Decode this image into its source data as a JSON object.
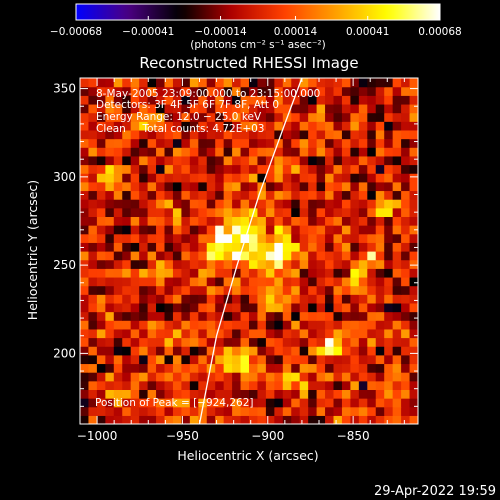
{
  "chart_data": {
    "type": "heatmap",
    "title": "Reconstructed RHESSI Image",
    "xlabel": "Heliocentric X (arcsec)",
    "ylabel": "Heliocentric Y (arcsec)",
    "xlim": [
      -1010,
      -812
    ],
    "ylim": [
      160,
      356
    ],
    "x_ticks": [
      -1000,
      -950,
      -900,
      -850
    ],
    "x_tick_labels": [
      "−1000",
      "−950",
      "−900",
      "−850"
    ],
    "y_ticks": [
      200,
      250,
      300,
      350
    ],
    "y_tick_labels": [
      "200",
      "250",
      "300",
      "350"
    ],
    "colorbar": {
      "range": [
        -0.00068,
        0.00068
      ],
      "ticks": [
        -0.00068,
        -0.00041,
        -0.00014,
        0.00014,
        0.00041,
        0.00068
      ],
      "tick_labels": [
        "−0.00068",
        "−0.00041",
        "−0.00014",
        "0.00014",
        "0.00041",
        "0.00068"
      ],
      "units_label": "(photons cm⁻² s⁻¹ asec⁻²)",
      "colors": [
        "#0000ff",
        "#4b0082",
        "#000000",
        "#b00000",
        "#ff4000",
        "#ffa000",
        "#ffff00",
        "#ffffff"
      ]
    },
    "annotations": {
      "time_range": "8‑May‑2005 23:09:00.000 to 23:15:00.000",
      "detectors": "Detectors: 3F 4F 5F 6F 7F 8F, Att 0",
      "energy": "Energy Range: 12.0 − 25.0 keV",
      "clean": "Clean     Total counts: 4.72E+03",
      "peak": "Position of Peak = [−924,262]"
    },
    "peak_position": [
      -924,
      262
    ],
    "limb_curve": [
      [
        -940,
        160
      ],
      [
        -930,
        210
      ],
      [
        -918,
        250
      ],
      [
        -905,
        290
      ],
      [
        -890,
        330
      ],
      [
        -880,
        356
      ]
    ],
    "sources": [
      {
        "x": -924,
        "y": 262,
        "amp": 0.00068,
        "sx": 8,
        "sy": 9
      },
      {
        "x": -910,
        "y": 270,
        "amp": 0.00045,
        "sx": 6,
        "sy": 12
      },
      {
        "x": -893,
        "y": 258,
        "amp": 0.00055,
        "sx": 7,
        "sy": 10
      },
      {
        "x": -895,
        "y": 232,
        "amp": 0.0004,
        "sx": 6,
        "sy": 6
      },
      {
        "x": -992,
        "y": 300,
        "amp": 0.00042,
        "sx": 5,
        "sy": 4
      },
      {
        "x": -960,
        "y": 280,
        "amp": 0.0003,
        "sx": 6,
        "sy": 6
      },
      {
        "x": -966,
        "y": 245,
        "amp": 0.00032,
        "sx": 5,
        "sy": 4
      },
      {
        "x": -960,
        "y": 210,
        "amp": 0.00028,
        "sx": 6,
        "sy": 5
      },
      {
        "x": -990,
        "y": 182,
        "amp": 0.00035,
        "sx": 6,
        "sy": 5
      },
      {
        "x": -940,
        "y": 175,
        "amp": 0.0002,
        "sx": 6,
        "sy": 5
      },
      {
        "x": -918,
        "y": 195,
        "amp": 0.00035,
        "sx": 8,
        "sy": 6
      },
      {
        "x": -885,
        "y": 185,
        "amp": 0.00028,
        "sx": 7,
        "sy": 5
      },
      {
        "x": -862,
        "y": 205,
        "amp": 0.00045,
        "sx": 6,
        "sy": 6
      },
      {
        "x": -848,
        "y": 240,
        "amp": 0.0003,
        "sx": 5,
        "sy": 7
      },
      {
        "x": -838,
        "y": 255,
        "amp": 0.00035,
        "sx": 4,
        "sy": 5
      },
      {
        "x": -830,
        "y": 283,
        "amp": 0.00032,
        "sx": 4,
        "sy": 4
      },
      {
        "x": -858,
        "y": 283,
        "amp": 0.0002,
        "sx": 5,
        "sy": 4
      },
      {
        "x": -895,
        "y": 305,
        "amp": 0.0003,
        "sx": 6,
        "sy": 4
      },
      {
        "x": -870,
        "y": 333,
        "amp": 0.00025,
        "sx": 5,
        "sy": 4
      },
      {
        "x": -972,
        "y": 332,
        "amp": 0.00025,
        "sx": 6,
        "sy": 4
      },
      {
        "x": -848,
        "y": 168,
        "amp": 0.0003,
        "sx": 6,
        "sy": 4
      },
      {
        "x": -825,
        "y": 180,
        "amp": 0.00028,
        "sx": 4,
        "sy": 5
      },
      {
        "x": -960,
        "y": 170,
        "amp": 0.00022,
        "sx": 5,
        "sy": 4
      }
    ]
  },
  "timestamp": "29-Apr-2022 19:59"
}
